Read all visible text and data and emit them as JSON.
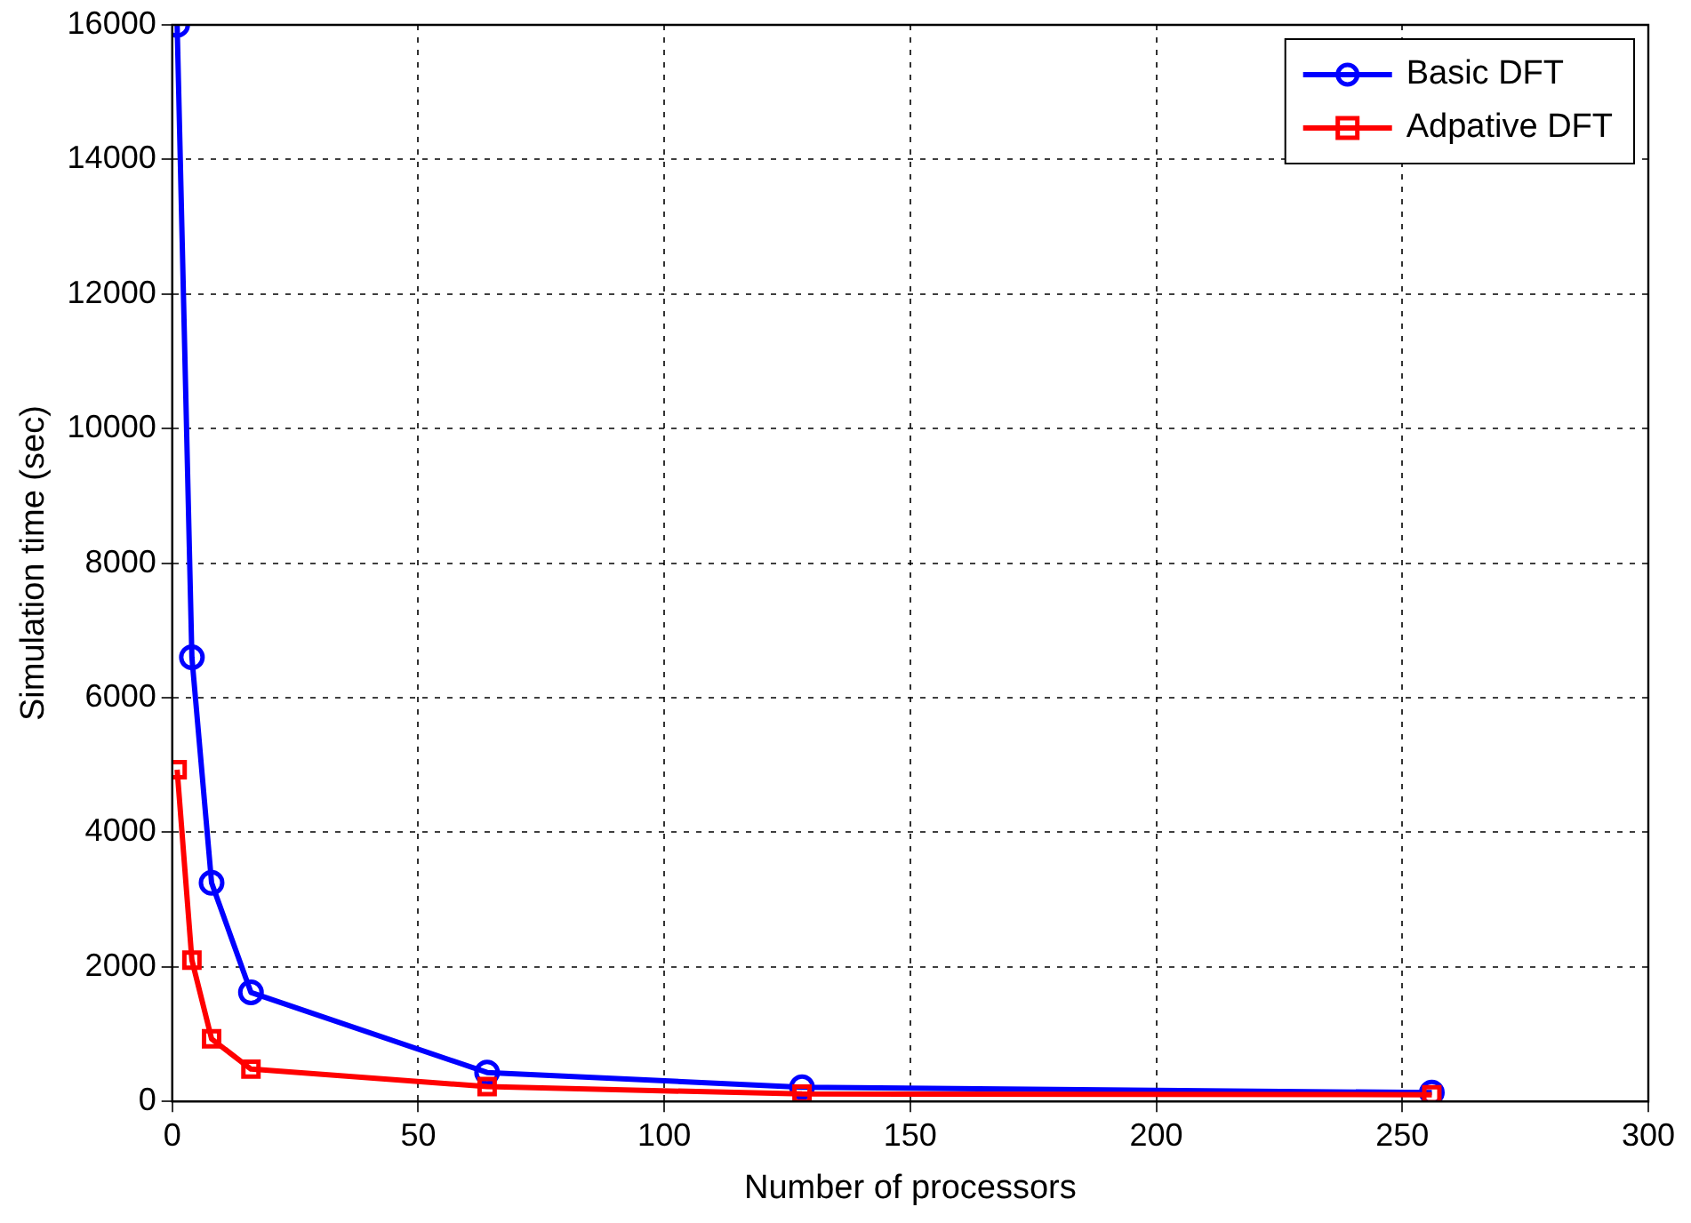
{
  "chart_data": {
    "type": "line",
    "xlabel": "Number of processors",
    "ylabel": "Simulation time (sec)",
    "x": [
      1,
      4,
      8,
      16,
      64,
      128,
      256
    ],
    "series": [
      {
        "name": "Basic DFT",
        "color": "#0000ff",
        "marker": "circle",
        "values": [
          16000,
          6600,
          3250,
          1620,
          430,
          210,
          130
        ]
      },
      {
        "name": "Adpative DFT",
        "color": "#ff0000",
        "marker": "square",
        "values": [
          4930,
          2100,
          930,
          480,
          220,
          110,
          100
        ]
      }
    ],
    "xlim": [
      0,
      300
    ],
    "xticks": [
      0,
      50,
      100,
      150,
      200,
      250,
      300
    ],
    "ylim": [
      0,
      16000
    ],
    "yticks": [
      0,
      2000,
      4000,
      6000,
      8000,
      10000,
      12000,
      14000,
      16000
    ],
    "grid": true,
    "legend": "top right",
    "line_style": "solid"
  }
}
